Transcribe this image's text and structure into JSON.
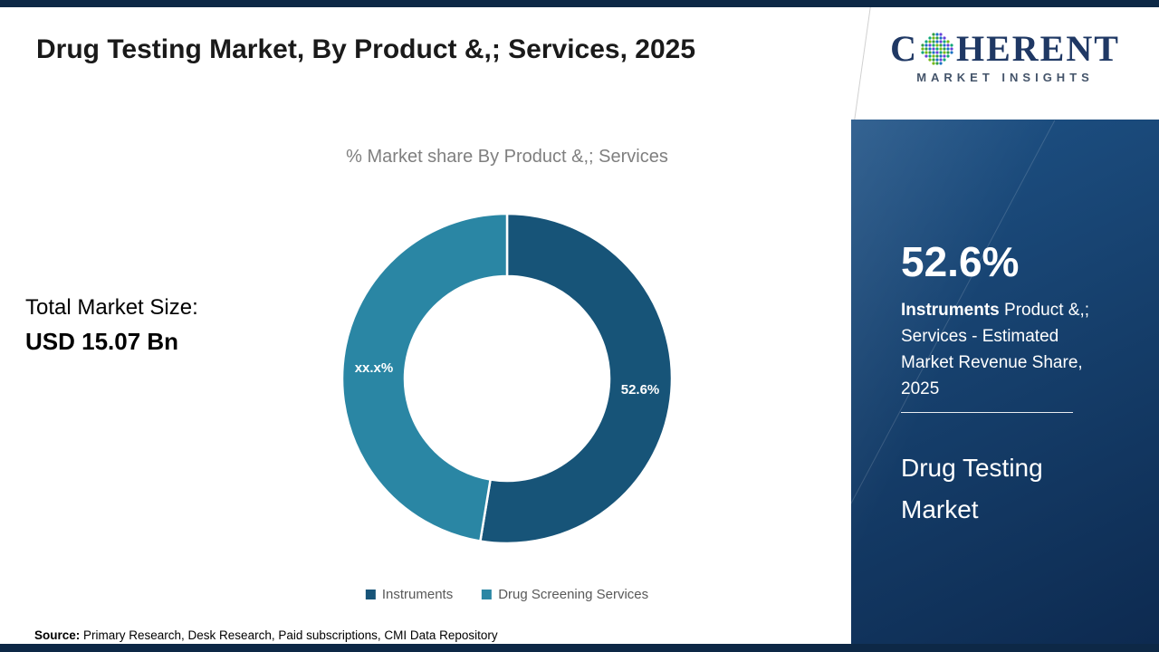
{
  "page": {
    "title": "Drug Testing Market, By Product &,; Services, 2025",
    "total_label": "Total Market Size:",
    "total_value": "USD 15.07 Bn",
    "source_label": "Source:",
    "source_text": " Primary Research, Desk Research, Paid subscriptions, CMI Data Repository"
  },
  "chart_data": {
    "type": "pie",
    "donut": true,
    "title": "% Market share By Product &,; Services",
    "categories": [
      "Instruments",
      "Drug Screening Services"
    ],
    "values": [
      52.6,
      47.4
    ],
    "labels": [
      "52.6%",
      "xx.x%"
    ],
    "colors": [
      "#175478",
      "#2a86a4"
    ],
    "legend_position": "bottom"
  },
  "side_panel": {
    "stat_value": "52.6%",
    "stat_bold": "Instruments",
    "stat_rest": " Product &,; Services - Estimated Market Revenue Share, 2025",
    "market_name": "Drug Testing Market",
    "logo": {
      "c": "C",
      "rest": "HERENT",
      "subtitle": "MARKET INSIGHTS"
    }
  },
  "colors": {
    "frame_strip": "#0d2846",
    "panel_gradient_top": "#1e5286",
    "panel_gradient_bottom": "#0d2a50",
    "title_text": "#1a1a1a",
    "subtitle_text": "#7f7f7f",
    "legend_text": "#595959",
    "logo_text": "#1f3864"
  }
}
